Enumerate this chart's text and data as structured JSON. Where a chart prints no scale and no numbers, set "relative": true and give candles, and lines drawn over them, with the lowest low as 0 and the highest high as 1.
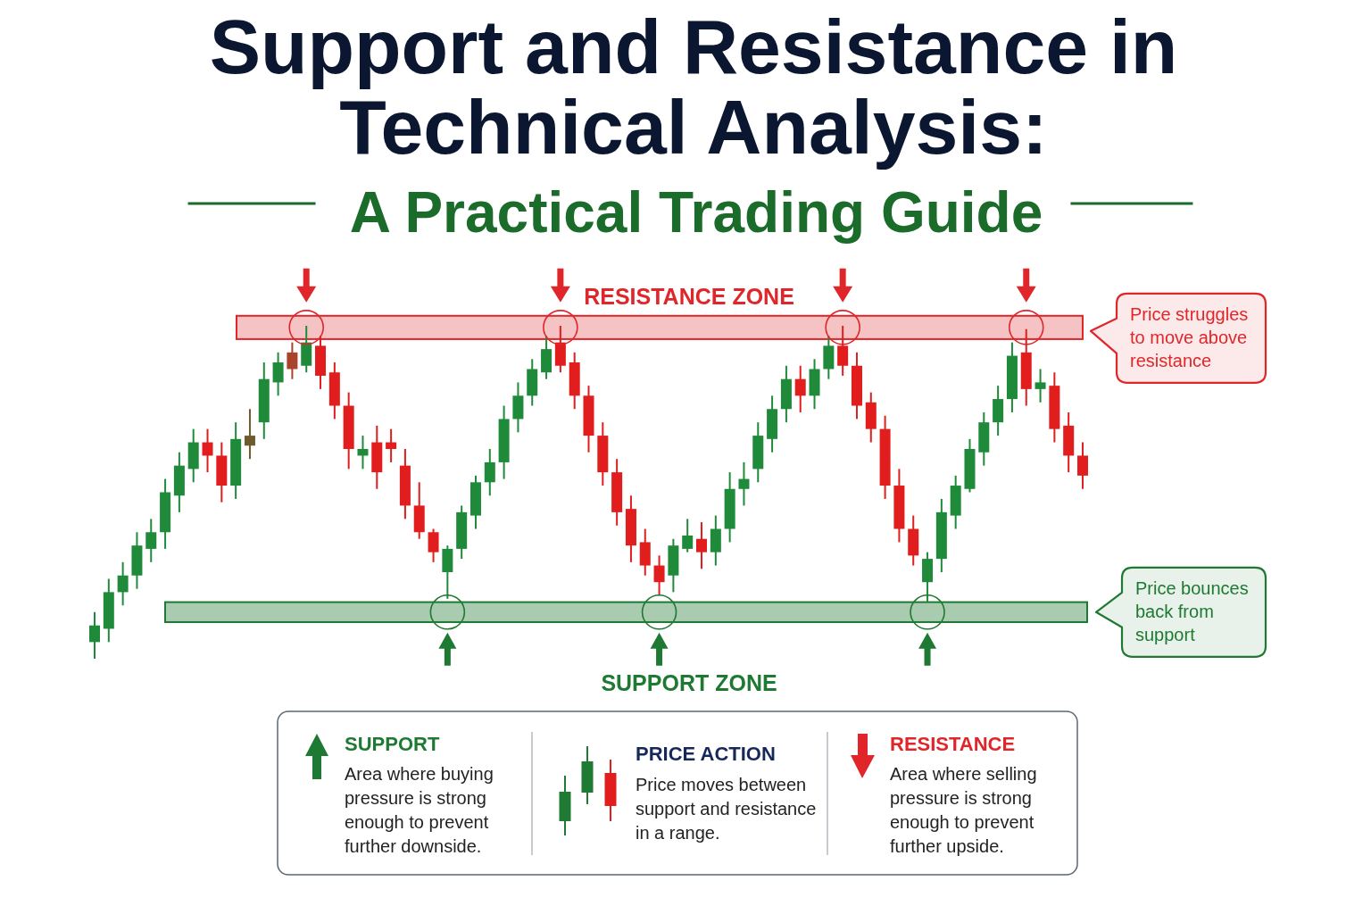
{
  "chart_data": {
    "type": "candlestick",
    "title": "Support and Resistance in Technical Analysis:",
    "subtitle": "A Practical Trading Guide",
    "relative": true,
    "categories": [
      null,
      null,
      null,
      null,
      null,
      null,
      null,
      null,
      null,
      null,
      null,
      null,
      null,
      null,
      null,
      null,
      null,
      null,
      null,
      null,
      null,
      null,
      null,
      null,
      null,
      null,
      null,
      null,
      null,
      null,
      null,
      null,
      null,
      null,
      null,
      null,
      null,
      null,
      null,
      null,
      null,
      null,
      null,
      null,
      null,
      null,
      null,
      null,
      null,
      null,
      null,
      null,
      null,
      null,
      null,
      null,
      null,
      null,
      null,
      null,
      null,
      null,
      null,
      null,
      null,
      null,
      null,
      null,
      null,
      null,
      null
    ],
    "ohlc": [
      [
        0.05,
        0.14,
        0,
        0.1
      ],
      [
        0.09,
        0.24,
        0.05,
        0.2
      ],
      [
        0.2,
        0.29,
        0.16,
        0.25
      ],
      [
        0.25,
        0.38,
        0.21,
        0.34
      ],
      [
        0.33,
        0.42,
        0.29,
        0.38
      ],
      [
        0.38,
        0.54,
        0.33,
        0.5
      ],
      [
        0.49,
        0.62,
        0.44,
        0.58
      ],
      [
        0.57,
        0.69,
        0.53,
        0.65
      ],
      [
        0.65,
        0.69,
        0.56,
        0.61
      ],
      [
        0.61,
        0.65,
        0.47,
        0.52
      ],
      [
        0.52,
        0.71,
        0.48,
        0.66
      ],
      [
        0.64,
        0.75,
        0.6,
        0.67
      ],
      [
        0.71,
        0.89,
        0.66,
        0.84
      ],
      [
        0.83,
        0.92,
        0.79,
        0.89
      ],
      [
        0.92,
        0.95,
        0.84,
        0.87
      ],
      [
        0.88,
        1,
        0.86,
        0.95
      ],
      [
        0.94,
        0.97,
        0.81,
        0.85
      ],
      [
        0.86,
        0.89,
        0.72,
        0.76
      ],
      [
        0.76,
        0.8,
        0.57,
        0.63
      ],
      [
        0.61,
        0.67,
        0.57,
        0.63
      ],
      [
        0.65,
        0.7,
        0.51,
        0.56
      ],
      [
        0.65,
        0.69,
        0.59,
        0.63
      ],
      [
        0.58,
        0.63,
        0.42,
        0.46
      ],
      [
        0.46,
        0.53,
        0.36,
        0.38
      ],
      [
        0.38,
        0.39,
        0.29,
        0.32
      ],
      [
        0.26,
        0.34,
        0.18,
        0.33
      ],
      [
        0.33,
        0.46,
        0.3,
        0.44
      ],
      [
        0.43,
        0.55,
        0.39,
        0.53
      ],
      [
        0.53,
        0.63,
        0.49,
        0.59
      ],
      [
        0.59,
        0.76,
        0.54,
        0.72
      ],
      [
        0.72,
        0.83,
        0.68,
        0.79
      ],
      [
        0.79,
        0.9,
        0.76,
        0.87
      ],
      [
        0.86,
        0.97,
        0.84,
        0.93
      ],
      [
        0.95,
        1,
        0.86,
        0.88
      ],
      [
        0.89,
        0.92,
        0.75,
        0.79
      ],
      [
        0.79,
        0.82,
        0.62,
        0.67
      ],
      [
        0.67,
        0.71,
        0.52,
        0.56
      ],
      [
        0.56,
        0.6,
        0.4,
        0.44
      ],
      [
        0.45,
        0.49,
        0.29,
        0.34
      ],
      [
        0.35,
        0.39,
        0.25,
        0.28
      ],
      [
        0.28,
        0.31,
        0.19,
        0.23
      ],
      [
        0.25,
        0.36,
        0.2,
        0.34
      ],
      [
        0.33,
        0.42,
        0.32,
        0.37
      ],
      [
        0.36,
        0.41,
        0.27,
        0.32
      ],
      [
        0.32,
        0.43,
        0.28,
        0.39
      ],
      [
        0.39,
        0.56,
        0.35,
        0.51
      ],
      [
        0.51,
        0.59,
        0.46,
        0.54
      ],
      [
        0.57,
        0.71,
        0.53,
        0.67
      ],
      [
        0.66,
        0.79,
        0.62,
        0.75
      ],
      [
        0.75,
        0.88,
        0.71,
        0.84
      ],
      [
        0.84,
        0.88,
        0.74,
        0.79
      ],
      [
        0.79,
        0.9,
        0.75,
        0.87
      ],
      [
        0.87,
        0.97,
        0.84,
        0.94
      ],
      [
        0.94,
        1,
        0.85,
        0.88
      ],
      [
        0.88,
        0.92,
        0.72,
        0.76
      ],
      [
        0.77,
        0.8,
        0.65,
        0.69
      ],
      [
        0.69,
        0.73,
        0.48,
        0.52
      ],
      [
        0.52,
        0.57,
        0.35,
        0.39
      ],
      [
        0.39,
        0.43,
        0.28,
        0.31
      ],
      [
        0.23,
        0.32,
        0.17,
        0.3
      ],
      [
        0.3,
        0.48,
        0.26,
        0.44
      ],
      [
        0.43,
        0.55,
        0.39,
        0.52
      ],
      [
        0.51,
        0.66,
        0.5,
        0.63
      ],
      [
        0.62,
        0.74,
        0.58,
        0.71
      ],
      [
        0.71,
        0.82,
        0.67,
        0.78
      ],
      [
        0.78,
        0.95,
        0.74,
        0.91
      ],
      [
        0.92,
        0.99,
        0.76,
        0.81
      ],
      [
        0.81,
        0.87,
        0.77,
        0.83
      ],
      [
        0.82,
        0.86,
        0.65,
        0.69
      ],
      [
        0.7,
        0.74,
        0.56,
        0.61
      ],
      [
        0.61,
        0.65,
        0.51,
        0.55
      ]
    ],
    "colors": [
      "#1f8b3a",
      "#1f8b3a",
      "#1f8b3a",
      "#1f8b3a",
      "#1f8b3a",
      "#1f8b3a",
      "#1f8b3a",
      "#1f8b3a",
      "#e11d1d",
      "#e11d1d",
      "#1f8b3a",
      "#6e5a2c",
      "#1f8b3a",
      "#1f8b3a",
      "#a8442a",
      "#1f8b3a",
      "#e11d1d",
      "#e11d1d",
      "#e11d1d",
      "#1f8b3a",
      "#e11d1d",
      "#e11d1d",
      "#e11d1d",
      "#e11d1d",
      "#e11d1d",
      "#1f8b3a",
      "#1f8b3a",
      "#1f8b3a",
      "#1f8b3a",
      "#1f8b3a",
      "#1f8b3a",
      "#1f8b3a",
      "#1f8b3a",
      "#e11d1d",
      "#e11d1d",
      "#e11d1d",
      "#e11d1d",
      "#e11d1d",
      "#e11d1d",
      "#e11d1d",
      "#e11d1d",
      "#1f8b3a",
      "#1f8b3a",
      "#e11d1d",
      "#1f8b3a",
      "#1f8b3a",
      "#1f8b3a",
      "#1f8b3a",
      "#1f8b3a",
      "#1f8b3a",
      "#e11d1d",
      "#1f8b3a",
      "#1f8b3a",
      "#e11d1d",
      "#e11d1d",
      "#e11d1d",
      "#e11d1d",
      "#e11d1d",
      "#e11d1d",
      "#1f8b3a",
      "#1f8b3a",
      "#1f8b3a",
      "#1f8b3a",
      "#1f8b3a",
      "#1f8b3a",
      "#1f8b3a",
      "#e11d1d",
      "#1f8b3a",
      "#e11d1d",
      "#e11d1d",
      "#e11d1d"
    ],
    "bands": [
      {
        "axis": "y",
        "from": 0.96,
        "to": 1.03,
        "label": "RESISTANCE ZONE",
        "color": "#e0262a"
      },
      {
        "axis": "y",
        "from": 0.11,
        "to": 0.17,
        "label": "SUPPORT ZONE",
        "color": "#1e7a32"
      }
    ],
    "annotations": [
      "Price struggles to move above resistance",
      "Price bounces back from support",
      "SUPPORT",
      "Area where buying pressure is strong enough to prevent further downside.",
      "PRICE ACTION",
      "Price moves between support and resistance in a range.",
      "RESISTANCE",
      "Area where selling pressure is strong enough to prevent further upside."
    ]
  }
}
